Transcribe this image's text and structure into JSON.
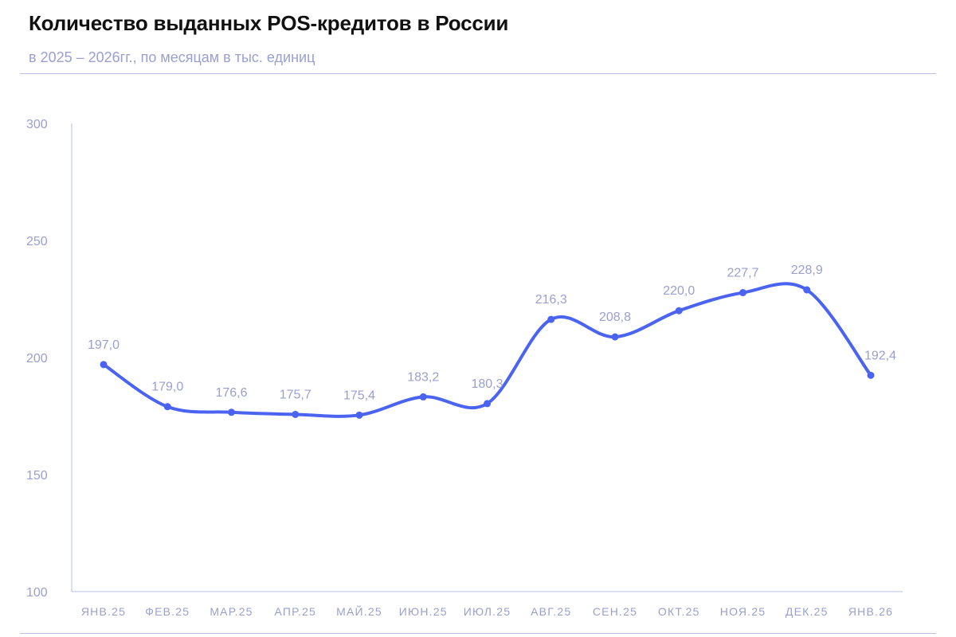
{
  "chart_data": {
    "type": "line",
    "title": "Количество выданных POS-кредитов в России",
    "subtitle": "в 2025 – 2026гг., по месяцам в тыс. единиц",
    "xlabel": "",
    "ylabel": "",
    "ylim": [
      100,
      300
    ],
    "yticks": [
      "300",
      "250",
      "200",
      "150",
      "100"
    ],
    "categories": [
      "ЯНВ.25",
      "ФЕВ.25",
      "МАР.25",
      "АПР.25",
      "МАЙ.25",
      "ИЮН.25",
      "ИЮЛ.25",
      "АВГ.25",
      "СЕН.25",
      "ОКТ.25",
      "НОЯ.25",
      "ДЕК.25",
      "ЯНВ.26"
    ],
    "series": [
      {
        "values": [
          197.0,
          179.0,
          176.6,
          175.7,
          175.4,
          183.2,
          180.3,
          216.3,
          208.8,
          220.0,
          227.7,
          228.9,
          192.4
        ],
        "labels": [
          "197,0",
          "179,0",
          "176,6",
          "175,7",
          "175,4",
          "183,2",
          "180,3",
          "216,3",
          "208,8",
          "220,0",
          "227,7",
          "228,9",
          "192,4"
        ]
      }
    ],
    "grid": false,
    "legend": "none",
    "colors": {
      "line": "#4a63f0",
      "text": "#9a9fd0",
      "axis": "#b9bce3"
    }
  }
}
